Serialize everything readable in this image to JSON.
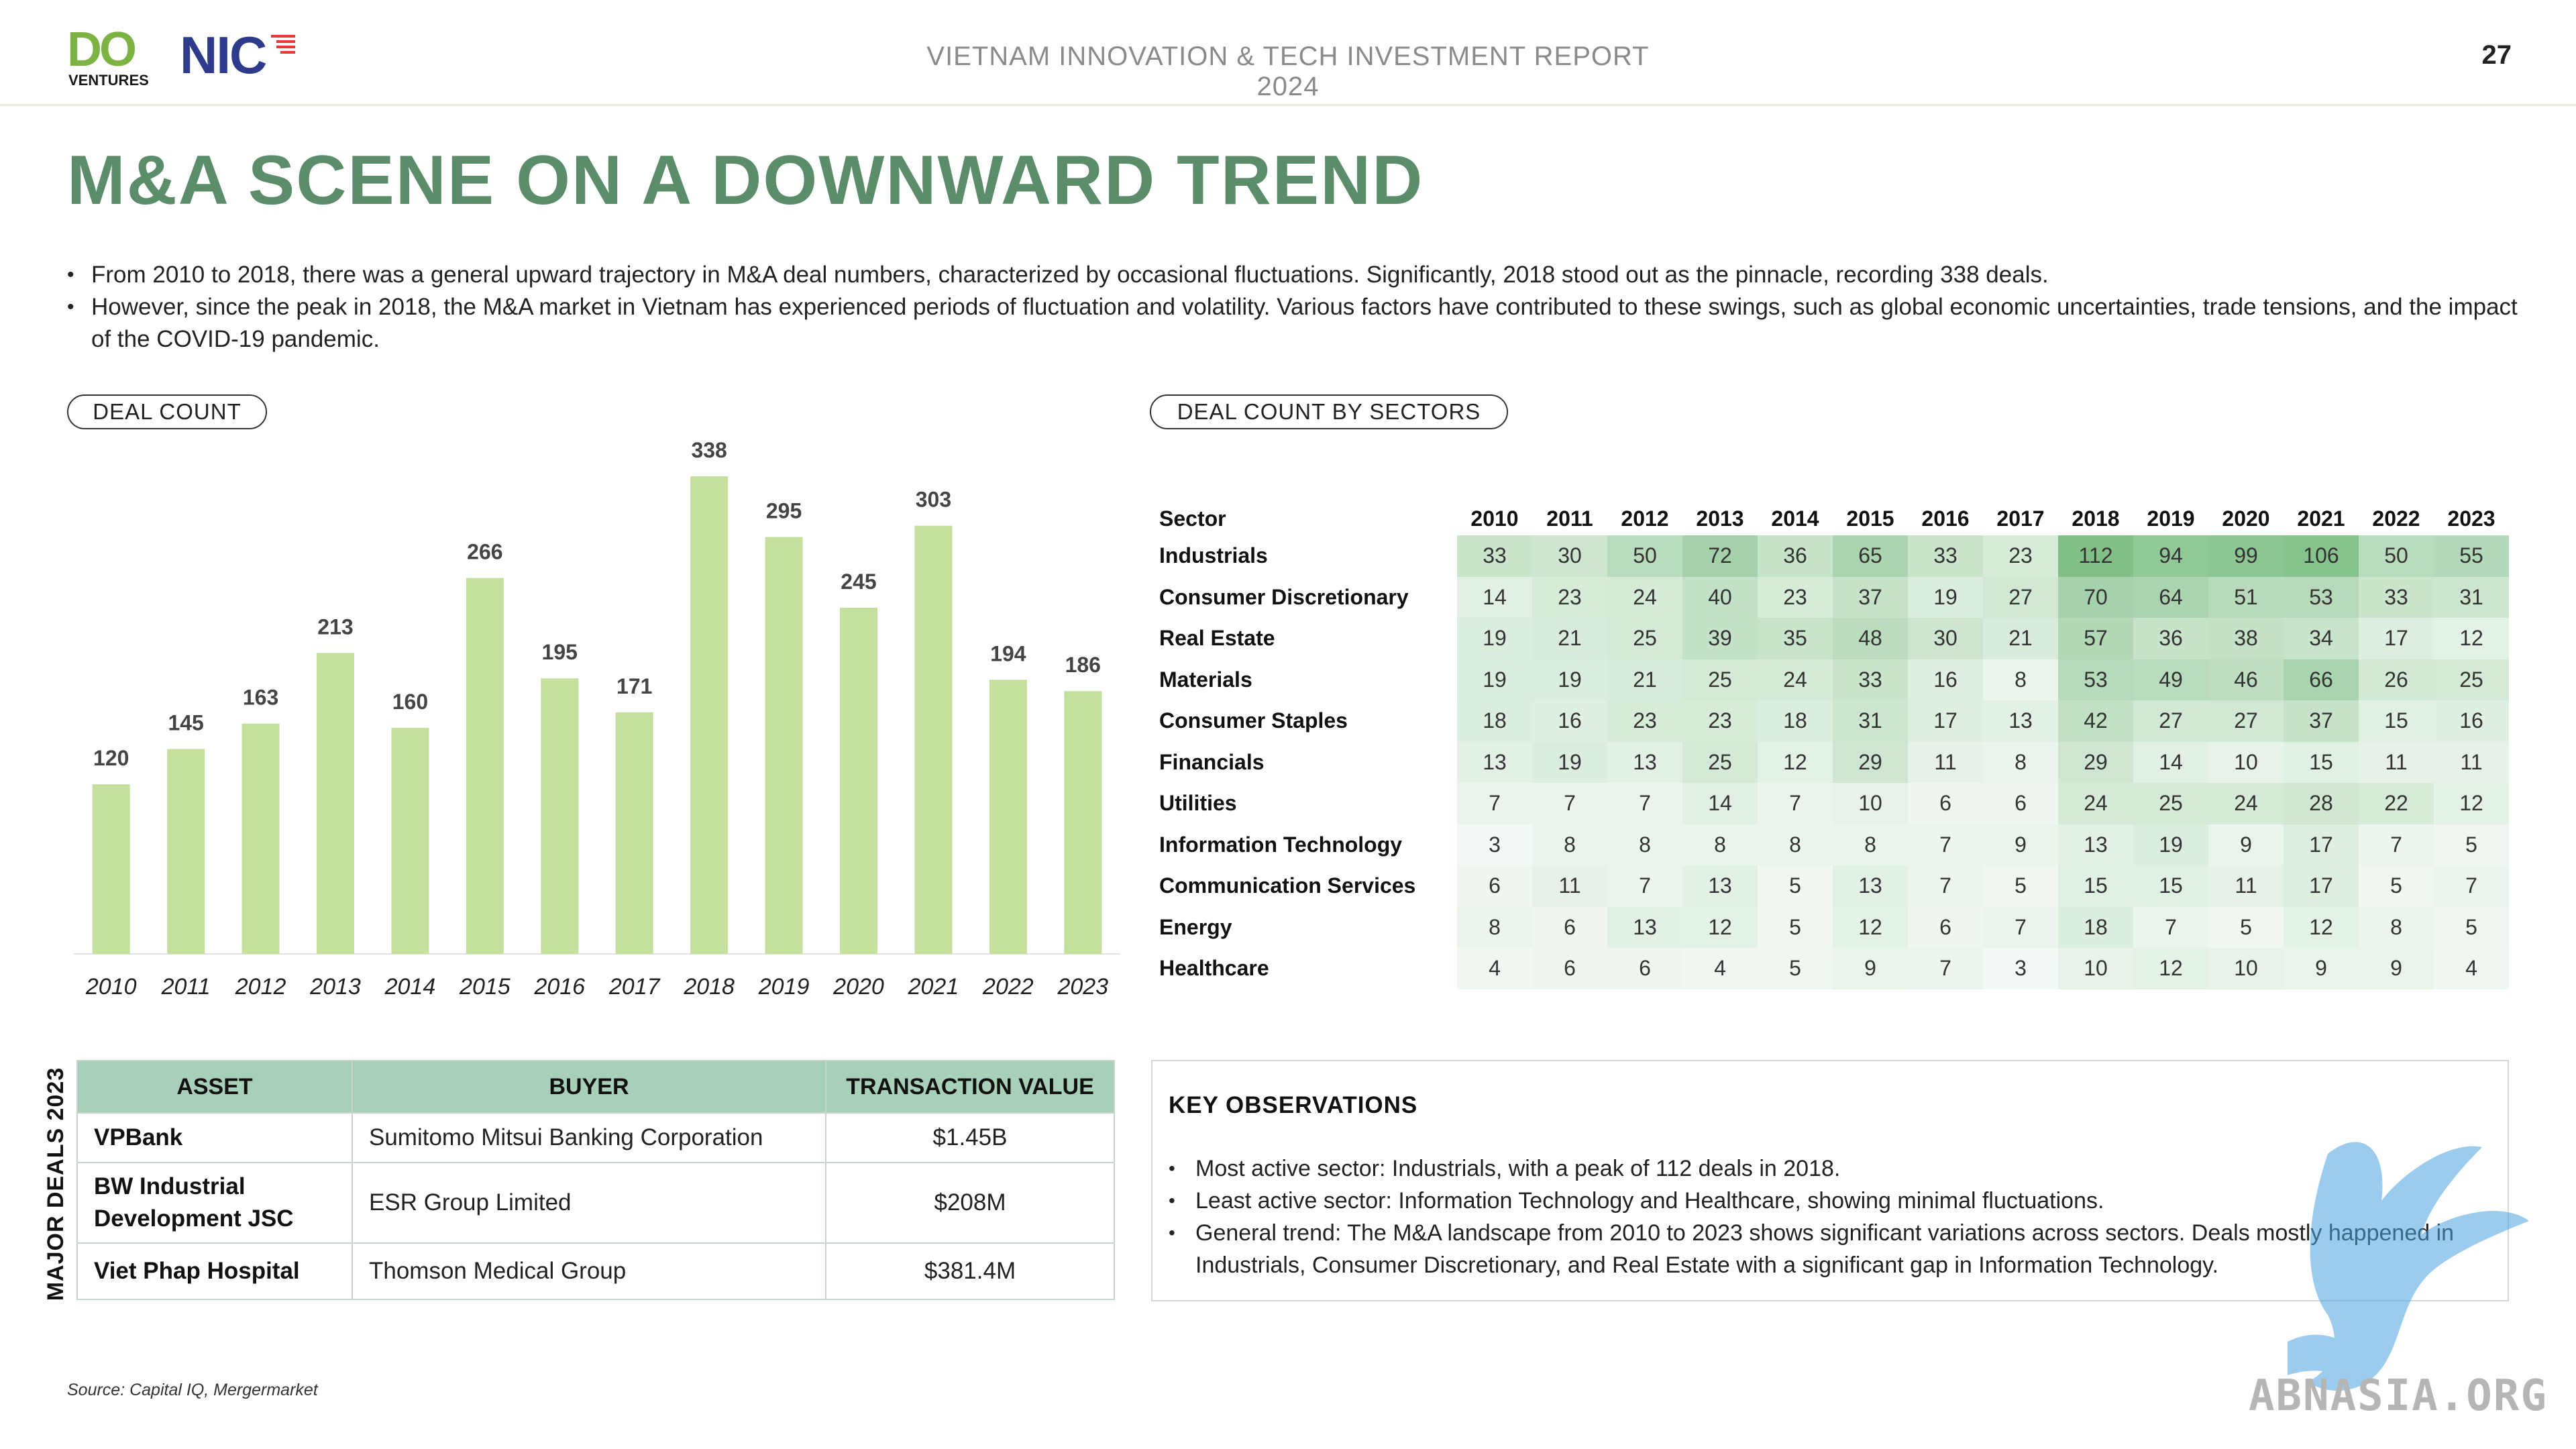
{
  "header": {
    "logo_do": "DO",
    "logo_ventures": "VENTURES",
    "logo_nic": "NIC",
    "report_title": "VIETNAM INNOVATION & TECH INVESTMENT REPORT 2024",
    "page_number": "27"
  },
  "page_title": "M&A SCENE ON A DOWNWARD TREND",
  "bullets": [
    "From 2010 to 2018, there was a general upward trajectory in M&A deal numbers, characterized by occasional fluctuations. Significantly, 2018 stood out as the pinnacle, recording 338 deals.",
    "However, since the peak in 2018, the M&A market in Vietnam has experienced periods of fluctuation and volatility. Various factors have contributed to these swings, such as global economic uncertainties, trade tensions, and the impact of the COVID-19 pandemic."
  ],
  "sections": {
    "deal_count": "DEAL COUNT",
    "deal_count_by_sectors": "DEAL COUNT BY SECTORS"
  },
  "chart_data": [
    {
      "type": "bar",
      "title": "DEAL COUNT",
      "categories": [
        "2010",
        "2011",
        "2012",
        "2013",
        "2014",
        "2015",
        "2016",
        "2017",
        "2018",
        "2019",
        "2020",
        "2021",
        "2022",
        "2023"
      ],
      "values": [
        120,
        145,
        163,
        213,
        160,
        266,
        195,
        171,
        338,
        295,
        245,
        303,
        194,
        186
      ],
      "bar_color": "#c5df9c",
      "data_labels": true,
      "grid": false,
      "ylim": [
        0,
        338
      ]
    },
    {
      "type": "heatmap",
      "title": "DEAL COUNT BY SECTORS",
      "row_header": "Sector",
      "columns": [
        "2010",
        "2011",
        "2012",
        "2013",
        "2014",
        "2015",
        "2016",
        "2017",
        "2018",
        "2019",
        "2020",
        "2021",
        "2022",
        "2023"
      ],
      "rows": [
        {
          "sector": "Industrials",
          "values": [
            33,
            30,
            50,
            72,
            36,
            65,
            33,
            23,
            112,
            94,
            99,
            106,
            50,
            55
          ]
        },
        {
          "sector": "Consumer Discretionary",
          "values": [
            14,
            23,
            24,
            40,
            23,
            37,
            19,
            27,
            70,
            64,
            51,
            53,
            33,
            31
          ]
        },
        {
          "sector": "Real Estate",
          "values": [
            19,
            21,
            25,
            39,
            35,
            48,
            30,
            21,
            57,
            36,
            38,
            34,
            17,
            12
          ]
        },
        {
          "sector": "Materials",
          "values": [
            19,
            19,
            21,
            25,
            24,
            33,
            16,
            8,
            53,
            49,
            46,
            66,
            26,
            25
          ]
        },
        {
          "sector": "Consumer Staples",
          "values": [
            18,
            16,
            23,
            23,
            18,
            31,
            17,
            13,
            42,
            27,
            27,
            37,
            15,
            16
          ]
        },
        {
          "sector": "Financials",
          "values": [
            13,
            19,
            13,
            25,
            12,
            29,
            11,
            8,
            29,
            14,
            10,
            15,
            11,
            11
          ]
        },
        {
          "sector": "Utilities",
          "values": [
            7,
            7,
            7,
            14,
            7,
            10,
            6,
            6,
            24,
            25,
            24,
            28,
            22,
            12
          ]
        },
        {
          "sector": "Information Technology",
          "values": [
            3,
            8,
            8,
            8,
            8,
            8,
            7,
            9,
            13,
            19,
            9,
            17,
            7,
            5
          ]
        },
        {
          "sector": "Communication Services",
          "values": [
            6,
            11,
            7,
            13,
            5,
            13,
            7,
            5,
            15,
            15,
            11,
            17,
            5,
            7
          ]
        },
        {
          "sector": "Energy",
          "values": [
            8,
            6,
            13,
            12,
            5,
            12,
            6,
            7,
            18,
            7,
            5,
            12,
            8,
            5
          ]
        },
        {
          "sector": "Healthcare",
          "values": [
            4,
            6,
            6,
            4,
            5,
            9,
            7,
            3,
            10,
            12,
            10,
            9,
            9,
            4
          ]
        }
      ],
      "color_scale": {
        "low": "#ffffff",
        "high": "#7fbf86"
      }
    },
    {
      "type": "table",
      "title": "MAJOR DEALS 2023",
      "columns": [
        "ASSET",
        "BUYER",
        "TRANSACTION VALUE"
      ],
      "rows": [
        [
          "VPBank",
          "Sumitomo Mitsui Banking Corporation",
          "$1.45B"
        ],
        [
          "BW Industrial Development JSC",
          "ESR Group Limited",
          "$208M"
        ],
        [
          "Viet Phap Hospital",
          "Thomson Medical Group",
          "$381.4M"
        ]
      ]
    }
  ],
  "major_deals_label": "MAJOR DEALS 2023",
  "key_observations": {
    "title": "KEY OBSERVATIONS",
    "items": [
      "Most active sector: Industrials, with a peak of 112 deals in 2018.",
      "Least active sector: Information Technology and Healthcare, showing minimal fluctuations.",
      "General trend: The M&A landscape from 2010 to 2023 shows significant variations across sectors. Deals mostly happened in Industrials, Consumer Discretionary, and Real Estate with a significant gap in Information Technology."
    ]
  },
  "source": "Source: Capital IQ, Mergermarket",
  "watermark": "ABNASIA.ORG"
}
